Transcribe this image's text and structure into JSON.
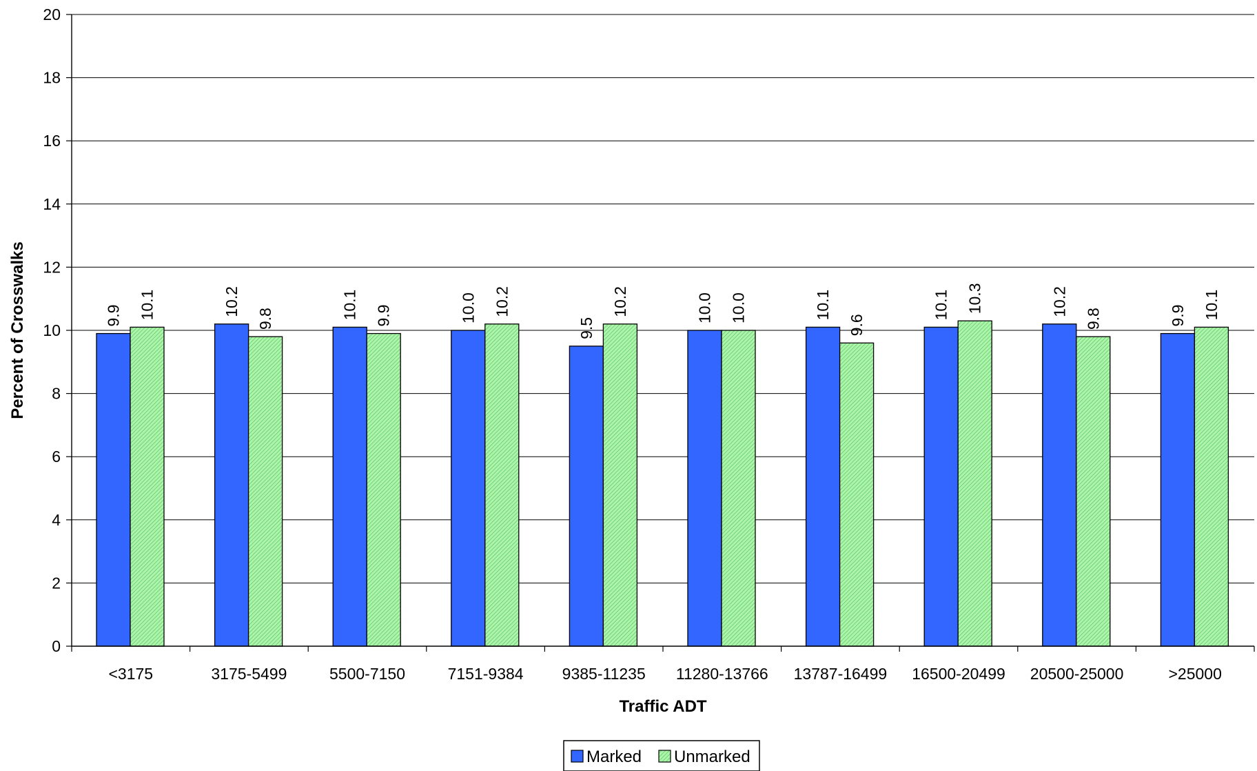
{
  "chart_data": {
    "type": "bar",
    "title": "",
    "xlabel": "Traffic ADT",
    "ylabel": "Percent of Crosswalks",
    "ylim": [
      0,
      20
    ],
    "yticks": [
      0,
      2,
      4,
      6,
      8,
      10,
      12,
      14,
      16,
      18,
      20
    ],
    "grid": true,
    "legend_position": "bottom-center",
    "categories": [
      "<3175",
      "3175-5499",
      "5500-7150",
      "7151-9384",
      "9385-11235",
      "11280-13766",
      "13787-16499",
      "16500-20499",
      "20500-25000",
      ">25000"
    ],
    "series": [
      {
        "name": "Marked",
        "color": "#3366ff",
        "values": [
          9.9,
          10.2,
          10.1,
          10.0,
          9.5,
          10.0,
          10.1,
          10.1,
          10.2,
          9.9
        ]
      },
      {
        "name": "Unmarked",
        "color": "#99ee99",
        "pattern": "diagonal-hatch",
        "values": [
          10.1,
          9.8,
          9.9,
          10.2,
          10.2,
          10.0,
          9.6,
          10.3,
          9.8,
          10.1
        ]
      }
    ],
    "data_label_format": "one-decimal"
  }
}
